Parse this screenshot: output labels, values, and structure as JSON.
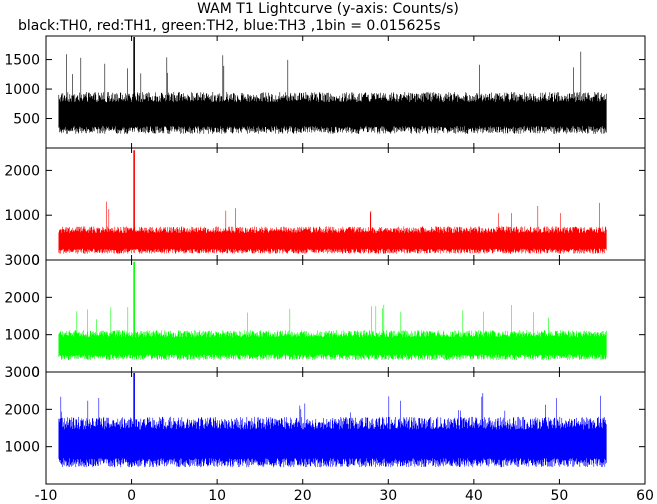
{
  "chart_data": {
    "type": "line",
    "title": "WAM T1 Lightcurve (y-axis: Counts/s)",
    "subtitle": "black:TH0, red:TH1, green:TH2, blue:TH3 ,1bin = 0.015625s",
    "xlabel": "",
    "xlim": [
      -10,
      60
    ],
    "x_ticks": [
      "-10",
      "0",
      "10",
      "20",
      "30",
      "40",
      "50",
      "60"
    ],
    "data_range": [
      -8.5,
      55.5
    ],
    "grid": false,
    "panels": [
      {
        "name": "TH0",
        "color": "#000000",
        "ylim": [
          0,
          1900
        ],
        "y_ticks": [
          500,
          1000,
          1500
        ],
        "y_tick_labels": [
          "500",
          "1000",
          "1500"
        ],
        "baseline": 570,
        "noise_high": 380,
        "noise_low": 330,
        "peak_max": 1650,
        "spike": {
          "x": 0.3,
          "y": 1900
        }
      },
      {
        "name": "TH1",
        "color": "#ff0000",
        "ylim": [
          0,
          2500
        ],
        "y_ticks": [
          0,
          1000,
          2000
        ],
        "y_tick_labels": [
          "0",
          "1000",
          "2000"
        ],
        "baseline": 420,
        "noise_high": 330,
        "noise_low": 280,
        "peak_max": 1350,
        "spike": {
          "x": 0.3,
          "y": 2450
        }
      },
      {
        "name": "TH2",
        "color": "#00ff00",
        "ylim": [
          0,
          3000
        ],
        "y_ticks": [
          0,
          1000,
          2000,
          3000
        ],
        "y_tick_labels": [
          "0",
          "1000",
          "2000",
          "3000"
        ],
        "baseline": 700,
        "noise_high": 420,
        "noise_low": 380,
        "peak_max": 1850,
        "spike": {
          "x": 0.3,
          "y": 2950
        }
      },
      {
        "name": "TH3",
        "color": "#0000ff",
        "ylim": [
          0,
          3000
        ],
        "y_ticks": [
          1000,
          2000,
          3000
        ],
        "y_tick_labels": [
          "1000",
          "2000",
          "3000"
        ],
        "baseline": 1050,
        "noise_high": 750,
        "noise_low": 600,
        "peak_max": 2450,
        "spike": {
          "x": 0.3,
          "y": 3000
        }
      }
    ]
  }
}
